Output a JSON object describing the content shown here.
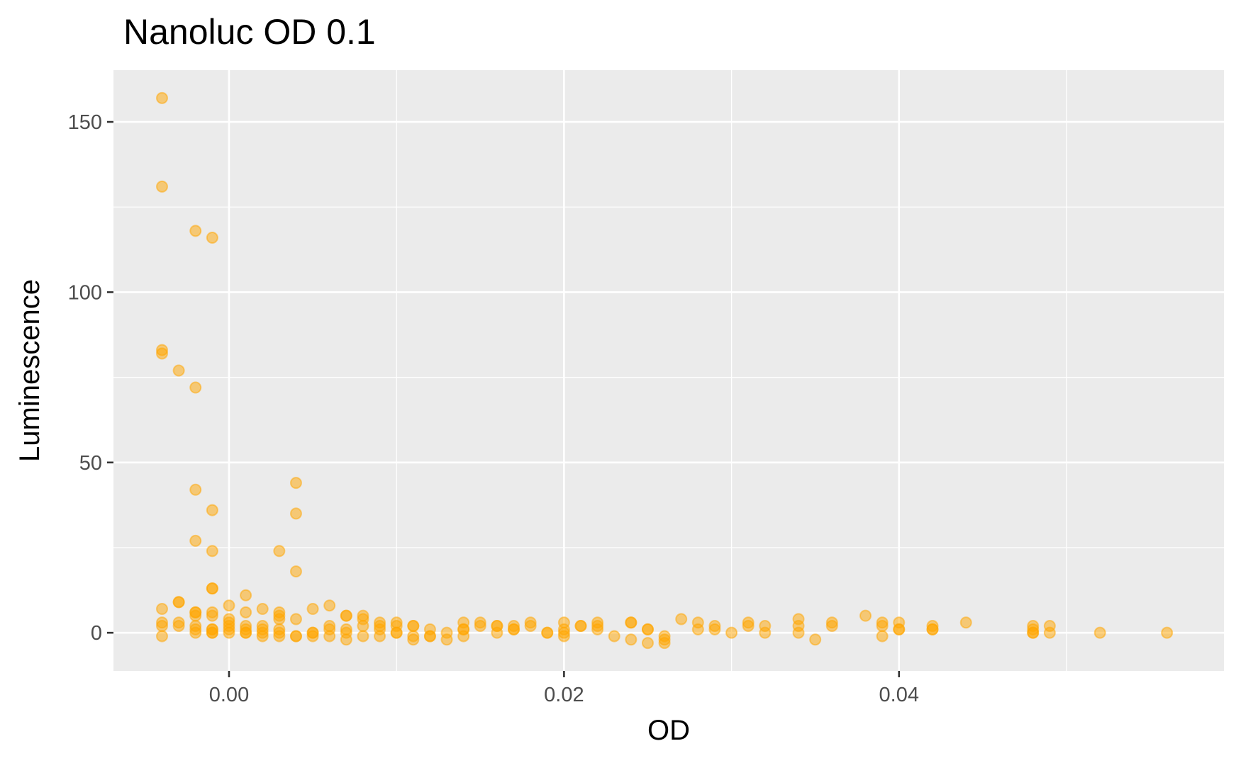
{
  "chart_data": {
    "type": "scatter",
    "title": "Nanoluc OD 0.1",
    "xlabel": "OD",
    "ylabel": "Luminescence",
    "xlim": [
      -0.0069,
      0.0594
    ],
    "ylim": [
      -11.2,
      165.2
    ],
    "x_ticks": [
      0.0,
      0.02,
      0.04
    ],
    "x_tick_labels": [
      "0.00",
      "0.02",
      "0.04"
    ],
    "y_ticks": [
      0,
      50,
      100,
      150
    ],
    "y_tick_labels": [
      "0",
      "50",
      "100",
      "150"
    ],
    "grid": true,
    "legend": "none",
    "colors": {
      "panel": "#ebebeb",
      "grid": "#ffffff",
      "point": "#ffa500",
      "tick": "#333333"
    },
    "point_opacity": 0.5,
    "points": [
      {
        "x": -0.004,
        "y": 157
      },
      {
        "x": -0.004,
        "y": 131
      },
      {
        "x": -0.004,
        "y": 83
      },
      {
        "x": -0.004,
        "y": 82
      },
      {
        "x": -0.004,
        "y": 7
      },
      {
        "x": -0.004,
        "y": 3
      },
      {
        "x": -0.004,
        "y": 2
      },
      {
        "x": -0.004,
        "y": -1
      },
      {
        "x": -0.003,
        "y": 77
      },
      {
        "x": -0.003,
        "y": 9
      },
      {
        "x": -0.003,
        "y": 9
      },
      {
        "x": -0.003,
        "y": 3
      },
      {
        "x": -0.003,
        "y": 2
      },
      {
        "x": -0.002,
        "y": 118
      },
      {
        "x": -0.002,
        "y": 72
      },
      {
        "x": -0.002,
        "y": 42
      },
      {
        "x": -0.002,
        "y": 27
      },
      {
        "x": -0.002,
        "y": 6
      },
      {
        "x": -0.002,
        "y": 6
      },
      {
        "x": -0.002,
        "y": 5
      },
      {
        "x": -0.002,
        "y": 2
      },
      {
        "x": -0.002,
        "y": 1
      },
      {
        "x": -0.002,
        "y": 0
      },
      {
        "x": -0.001,
        "y": 116
      },
      {
        "x": -0.001,
        "y": 36
      },
      {
        "x": -0.001,
        "y": 24
      },
      {
        "x": -0.001,
        "y": 13
      },
      {
        "x": -0.001,
        "y": 13
      },
      {
        "x": -0.001,
        "y": 6
      },
      {
        "x": -0.001,
        "y": 5
      },
      {
        "x": -0.001,
        "y": 1
      },
      {
        "x": -0.001,
        "y": 1
      },
      {
        "x": -0.001,
        "y": 0
      },
      {
        "x": -0.001,
        "y": 0
      },
      {
        "x": 0.0,
        "y": 8
      },
      {
        "x": 0.0,
        "y": 4
      },
      {
        "x": 0.0,
        "y": 3
      },
      {
        "x": 0.0,
        "y": 2
      },
      {
        "x": 0.0,
        "y": 1
      },
      {
        "x": 0.0,
        "y": 0
      },
      {
        "x": 0.001,
        "y": 11
      },
      {
        "x": 0.001,
        "y": 6
      },
      {
        "x": 0.001,
        "y": 2
      },
      {
        "x": 0.001,
        "y": 1
      },
      {
        "x": 0.001,
        "y": 0
      },
      {
        "x": 0.001,
        "y": 0
      },
      {
        "x": 0.002,
        "y": 7
      },
      {
        "x": 0.002,
        "y": 2
      },
      {
        "x": 0.002,
        "y": 1
      },
      {
        "x": 0.002,
        "y": 0
      },
      {
        "x": 0.002,
        "y": -1
      },
      {
        "x": 0.003,
        "y": 24
      },
      {
        "x": 0.003,
        "y": 6
      },
      {
        "x": 0.003,
        "y": 5
      },
      {
        "x": 0.003,
        "y": 4
      },
      {
        "x": 0.003,
        "y": 1
      },
      {
        "x": 0.003,
        "y": 0
      },
      {
        "x": 0.003,
        "y": -1
      },
      {
        "x": 0.004,
        "y": 44
      },
      {
        "x": 0.004,
        "y": 35
      },
      {
        "x": 0.004,
        "y": 18
      },
      {
        "x": 0.004,
        "y": 4
      },
      {
        "x": 0.004,
        "y": -1
      },
      {
        "x": 0.004,
        "y": -1
      },
      {
        "x": 0.005,
        "y": 7
      },
      {
        "x": 0.005,
        "y": 0
      },
      {
        "x": 0.005,
        "y": 0
      },
      {
        "x": 0.005,
        "y": -1
      },
      {
        "x": 0.006,
        "y": 8
      },
      {
        "x": 0.006,
        "y": 2
      },
      {
        "x": 0.006,
        "y": 1
      },
      {
        "x": 0.006,
        "y": -1
      },
      {
        "x": 0.007,
        "y": 5
      },
      {
        "x": 0.007,
        "y": 5
      },
      {
        "x": 0.007,
        "y": 1
      },
      {
        "x": 0.007,
        "y": 0
      },
      {
        "x": 0.007,
        "y": -2
      },
      {
        "x": 0.008,
        "y": 5
      },
      {
        "x": 0.008,
        "y": 4
      },
      {
        "x": 0.008,
        "y": 2
      },
      {
        "x": 0.008,
        "y": -1
      },
      {
        "x": 0.009,
        "y": 3
      },
      {
        "x": 0.009,
        "y": 2
      },
      {
        "x": 0.009,
        "y": 1
      },
      {
        "x": 0.009,
        "y": -1
      },
      {
        "x": 0.01,
        "y": 3
      },
      {
        "x": 0.01,
        "y": 2
      },
      {
        "x": 0.01,
        "y": 0
      },
      {
        "x": 0.01,
        "y": 0
      },
      {
        "x": 0.011,
        "y": 2
      },
      {
        "x": 0.011,
        "y": 2
      },
      {
        "x": 0.011,
        "y": -1
      },
      {
        "x": 0.011,
        "y": -2
      },
      {
        "x": 0.012,
        "y": 1
      },
      {
        "x": 0.012,
        "y": -1
      },
      {
        "x": 0.012,
        "y": -1
      },
      {
        "x": 0.013,
        "y": 0
      },
      {
        "x": 0.013,
        "y": -2
      },
      {
        "x": 0.014,
        "y": 3
      },
      {
        "x": 0.014,
        "y": 1
      },
      {
        "x": 0.014,
        "y": 1
      },
      {
        "x": 0.014,
        "y": -1
      },
      {
        "x": 0.015,
        "y": 3
      },
      {
        "x": 0.015,
        "y": 2
      },
      {
        "x": 0.016,
        "y": 2
      },
      {
        "x": 0.016,
        "y": 2
      },
      {
        "x": 0.016,
        "y": 0
      },
      {
        "x": 0.017,
        "y": 2
      },
      {
        "x": 0.017,
        "y": 1
      },
      {
        "x": 0.017,
        "y": 1
      },
      {
        "x": 0.018,
        "y": 3
      },
      {
        "x": 0.018,
        "y": 2
      },
      {
        "x": 0.019,
        "y": 0
      },
      {
        "x": 0.019,
        "y": 0
      },
      {
        "x": 0.02,
        "y": 3
      },
      {
        "x": 0.02,
        "y": 1
      },
      {
        "x": 0.02,
        "y": 0
      },
      {
        "x": 0.02,
        "y": -1
      },
      {
        "x": 0.021,
        "y": 2
      },
      {
        "x": 0.021,
        "y": 2
      },
      {
        "x": 0.022,
        "y": 3
      },
      {
        "x": 0.022,
        "y": 2
      },
      {
        "x": 0.022,
        "y": 1
      },
      {
        "x": 0.023,
        "y": -1
      },
      {
        "x": 0.024,
        "y": 3
      },
      {
        "x": 0.024,
        "y": 3
      },
      {
        "x": 0.024,
        "y": -2
      },
      {
        "x": 0.025,
        "y": 1
      },
      {
        "x": 0.025,
        "y": 1
      },
      {
        "x": 0.025,
        "y": -3
      },
      {
        "x": 0.026,
        "y": -1
      },
      {
        "x": 0.026,
        "y": -2
      },
      {
        "x": 0.026,
        "y": -3
      },
      {
        "x": 0.027,
        "y": 4
      },
      {
        "x": 0.028,
        "y": 3
      },
      {
        "x": 0.028,
        "y": 1
      },
      {
        "x": 0.029,
        "y": 2
      },
      {
        "x": 0.029,
        "y": 1
      },
      {
        "x": 0.03,
        "y": 0
      },
      {
        "x": 0.031,
        "y": 3
      },
      {
        "x": 0.031,
        "y": 2
      },
      {
        "x": 0.032,
        "y": 2
      },
      {
        "x": 0.032,
        "y": 0
      },
      {
        "x": 0.034,
        "y": 4
      },
      {
        "x": 0.034,
        "y": 2
      },
      {
        "x": 0.034,
        "y": 0
      },
      {
        "x": 0.035,
        "y": -2
      },
      {
        "x": 0.036,
        "y": 3
      },
      {
        "x": 0.036,
        "y": 2
      },
      {
        "x": 0.038,
        "y": 5
      },
      {
        "x": 0.039,
        "y": 3
      },
      {
        "x": 0.039,
        "y": 2
      },
      {
        "x": 0.039,
        "y": -1
      },
      {
        "x": 0.04,
        "y": 3
      },
      {
        "x": 0.04,
        "y": 1
      },
      {
        "x": 0.04,
        "y": 1
      },
      {
        "x": 0.042,
        "y": 2
      },
      {
        "x": 0.042,
        "y": 1
      },
      {
        "x": 0.042,
        "y": 1
      },
      {
        "x": 0.044,
        "y": 3
      },
      {
        "x": 0.048,
        "y": 2
      },
      {
        "x": 0.048,
        "y": 1
      },
      {
        "x": 0.048,
        "y": 0
      },
      {
        "x": 0.048,
        "y": 0
      },
      {
        "x": 0.049,
        "y": 2
      },
      {
        "x": 0.049,
        "y": 0
      },
      {
        "x": 0.052,
        "y": 0
      },
      {
        "x": 0.056,
        "y": 0
      }
    ]
  }
}
